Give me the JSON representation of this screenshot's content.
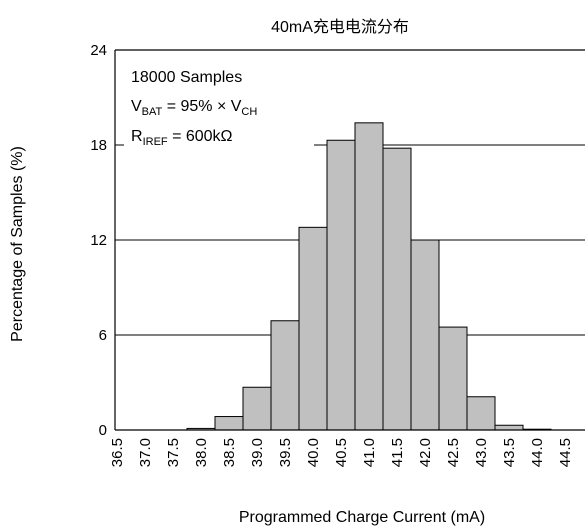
{
  "chart_data": {
    "type": "bar",
    "title": "40mA充电电流分布",
    "xlabel": "Programmed Charge Current (mA)",
    "ylabel": "Percentage of Samples (%)",
    "ylim": [
      0,
      24
    ],
    "yticks": [
      "0",
      "6",
      "12",
      "18",
      "24"
    ],
    "grid": "horizontal",
    "bar_color": "#c0c0c0",
    "categories": [
      "36.5",
      "37.0",
      "37.5",
      "38.0",
      "38.5",
      "39.0",
      "39.5",
      "40.0",
      "40.5",
      "41.0",
      "41.5",
      "42.0",
      "42.5",
      "43.0",
      "43.5",
      "44.0",
      "44.5"
    ],
    "values": [
      0,
      0,
      0,
      0.1,
      0.85,
      2.7,
      6.9,
      12.8,
      18.3,
      19.4,
      17.8,
      12.0,
      6.5,
      2.1,
      0.3,
      0.05,
      0
    ],
    "annotations": {
      "samples": "18000 Samples",
      "vbat": {
        "main": "V",
        "sub": "BAT",
        "mid": " = 95% × V",
        "sub2": "CH"
      },
      "riref": {
        "main": "R",
        "sub": "IREF",
        "rest": " = 600kΩ"
      }
    }
  }
}
